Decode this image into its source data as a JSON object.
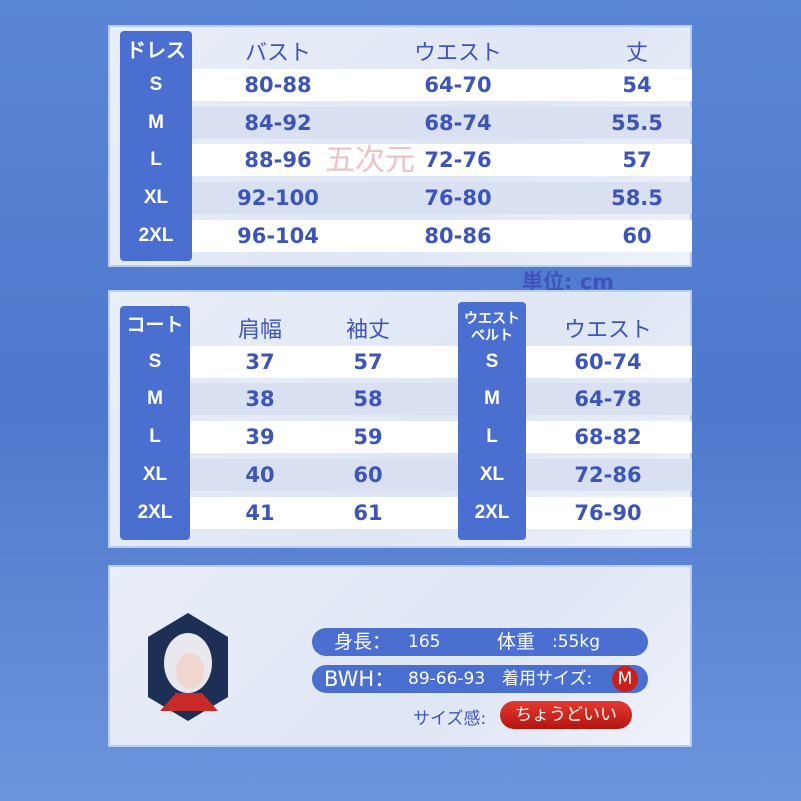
{
  "dress_table": {
    "title": "ドレス",
    "headers": [
      "バスト",
      "ウエスト",
      "丈"
    ],
    "rows": [
      {
        "size": "S",
        "values": [
          "80-88",
          "64-70",
          "54"
        ]
      },
      {
        "size": "M",
        "values": [
          "84-92",
          "68-74",
          "55.5"
        ]
      },
      {
        "size": "L",
        "values": [
          "88-96",
          "72-76",
          "57"
        ]
      },
      {
        "size": "XL",
        "values": [
          "92-100",
          "76-80",
          "58.5"
        ]
      },
      {
        "size": "2XL",
        "values": [
          "96-104",
          "80-86",
          "60"
        ]
      }
    ]
  },
  "unit": "単位: cm",
  "coat_table": {
    "title": "コート",
    "headers": [
      "肩幅",
      "袖丈"
    ],
    "rows": [
      {
        "size": "S",
        "values": [
          "37",
          "57"
        ]
      },
      {
        "size": "M",
        "values": [
          "38",
          "58"
        ]
      },
      {
        "size": "L",
        "values": [
          "39",
          "59"
        ]
      },
      {
        "size": "XL",
        "values": [
          "40",
          "60"
        ]
      },
      {
        "size": "2XL",
        "values": [
          "41",
          "61"
        ]
      }
    ]
  },
  "belt_table": {
    "title_line1": "ウエスト",
    "title_line2": "ベルト",
    "headers": [
      "ウエスト"
    ],
    "rows": [
      {
        "size": "S",
        "values": [
          "60-74"
        ]
      },
      {
        "size": "M",
        "values": [
          "64-78"
        ]
      },
      {
        "size": "L",
        "values": [
          "68-82"
        ]
      },
      {
        "size": "XL",
        "values": [
          "72-86"
        ]
      },
      {
        "size": "2XL",
        "values": [
          "76-90"
        ]
      }
    ]
  },
  "model": {
    "height_label": "身長：",
    "height": "165",
    "weight_label": "体重",
    "weight": ":55kg",
    "bwh_label": "BWH：",
    "bwh": "89-66-93",
    "worn_size_label": "着用サイズ:",
    "worn_size": "M",
    "fit_label": "サイズ感:",
    "fit": "ちょうどいい"
  },
  "watermark": "五次元",
  "colors": {
    "accent": "#4a6fd0",
    "text": "#3d55b8",
    "fit_badge": "#c8201c"
  }
}
